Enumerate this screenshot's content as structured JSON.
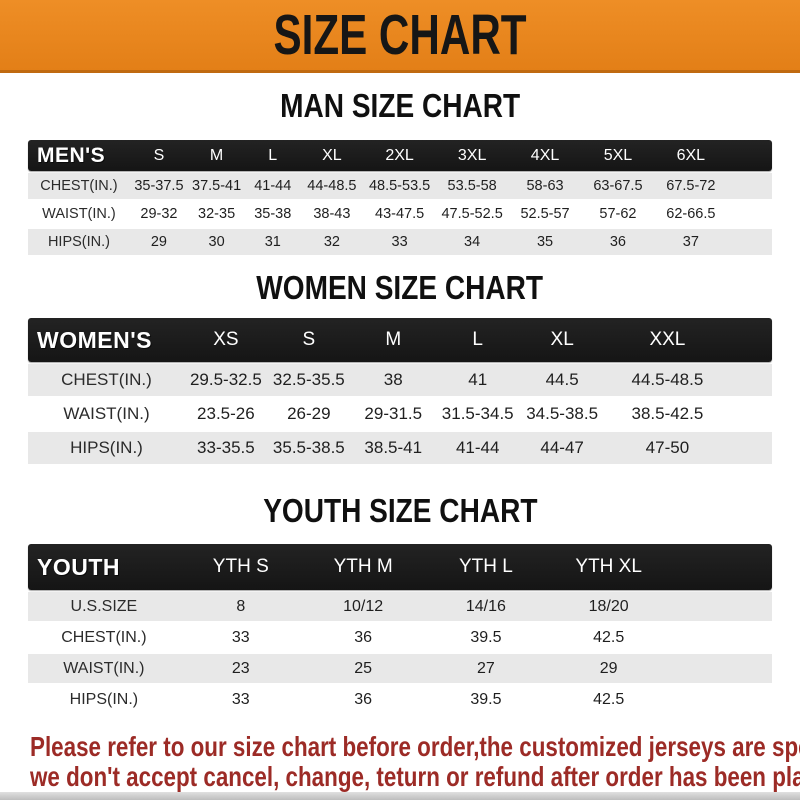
{
  "banner": {
    "title": "SIZE CHART"
  },
  "colors": {
    "banner_orange": "#E8861E",
    "header_bar_black": "#191919",
    "row_gray": "#E8E8E8",
    "disclaimer_red": "#9C2B26"
  },
  "sections": [
    {
      "title": "MAN SIZE CHART",
      "header_label": "MEN'S",
      "columns": [
        "S",
        "M",
        "L",
        "XL",
        "2XL",
        "3XL",
        "4XL",
        "5XL",
        "6XL"
      ],
      "rows": [
        {
          "label": "CHEST(IN.)",
          "values": [
            "35-37.5",
            "37.5-41",
            "41-44",
            "44-48.5",
            "48.5-53.5",
            "53.5-58",
            "58-63",
            "63-67.5",
            "67.5-72"
          ]
        },
        {
          "label": "WAIST(IN.)",
          "values": [
            "29-32",
            "32-35",
            "35-38",
            "38-43",
            "43-47.5",
            "47.5-52.5",
            "52.5-57",
            "57-62",
            "62-66.5"
          ]
        },
        {
          "label": "HIPS(IN.)",
          "values": [
            "29",
            "30",
            "31",
            "32",
            "33",
            "34",
            "35",
            "36",
            "37"
          ]
        }
      ]
    },
    {
      "title": "WOMEN SIZE CHART",
      "header_label": "WOMEN'S",
      "columns": [
        "XS",
        "S",
        "M",
        "L",
        "XL",
        "XXL"
      ],
      "rows": [
        {
          "label": "CHEST(IN.)",
          "values": [
            "29.5-32.5",
            "32.5-35.5",
            "38",
            "41",
            "44.5",
            "44.5-48.5"
          ]
        },
        {
          "label": "WAIST(IN.)",
          "values": [
            "23.5-26",
            "26-29",
            "29-31.5",
            "31.5-34.5",
            "34.5-38.5",
            "38.5-42.5"
          ]
        },
        {
          "label": "HIPS(IN.)",
          "values": [
            "33-35.5",
            "35.5-38.5",
            "38.5-41",
            "41-44",
            "44-47",
            "47-50"
          ]
        }
      ]
    },
    {
      "title": "YOUTH SIZE CHART",
      "header_label": "YOUTH",
      "columns": [
        "YTH S",
        "YTH M",
        "YTH L",
        "YTH XL"
      ],
      "rows": [
        {
          "label": "U.S.SIZE",
          "values": [
            "8",
            "10/12",
            "14/16",
            "18/20"
          ]
        },
        {
          "label": "CHEST(IN.)",
          "values": [
            "33",
            "36",
            "39.5",
            "42.5"
          ]
        },
        {
          "label": "WAIST(IN.)",
          "values": [
            "23",
            "25",
            "27",
            "29"
          ]
        },
        {
          "label": "HIPS(IN.)",
          "values": [
            "33",
            "36",
            "39.5",
            "42.5"
          ]
        }
      ]
    }
  ],
  "disclaimer": {
    "line1": "Please refer to our size chart before order,the customized jerseys are special products,",
    "line2": "we don't accept cancel, change, teturn or refund after order has been placed!"
  }
}
